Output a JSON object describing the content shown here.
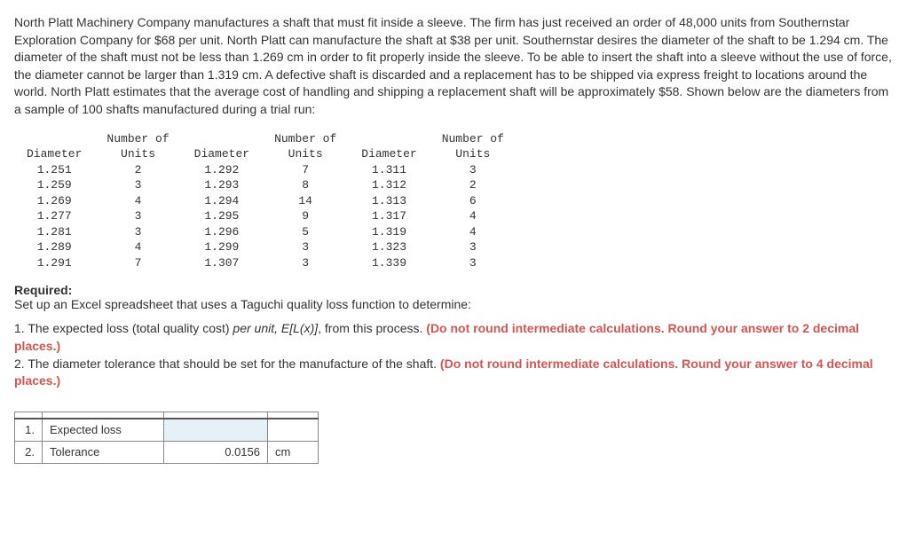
{
  "problem": "North Platt Machinery Company manufactures a shaft that must fit inside a sleeve. The firm has just received an order of 48,000 units from Southernstar Exploration Company for $68 per unit. North Platt can manufacture the shaft at $38 per unit. Southernstar desires the diameter of the shaft to be 1.294 cm. The diameter of the shaft must not be less than 1.269 cm in order to fit properly inside the sleeve. To be able to insert the shaft into a sleeve without the use of force, the diameter cannot be larger than 1.319 cm. A defective shaft is discarded and a replacement has to be shipped via express freight to locations around the world. North Platt estimates that the average cost of handling and shipping a replacement shaft will be approximately $58. Shown below are the diameters from a sample of 100 shafts manufactured during a trial run:",
  "table": {
    "header_top": "Number of",
    "header_diam": "Diameter",
    "header_units": "Units",
    "rows": [
      {
        "d1": "1.251",
        "u1": "2",
        "d2": "1.292",
        "u2": "7",
        "d3": "1.311",
        "u3": "3"
      },
      {
        "d1": "1.259",
        "u1": "3",
        "d2": "1.293",
        "u2": "8",
        "d3": "1.312",
        "u3": "2"
      },
      {
        "d1": "1.269",
        "u1": "4",
        "d2": "1.294",
        "u2": "14",
        "d3": "1.313",
        "u3": "6"
      },
      {
        "d1": "1.277",
        "u1": "3",
        "d2": "1.295",
        "u2": "9",
        "d3": "1.317",
        "u3": "4"
      },
      {
        "d1": "1.281",
        "u1": "3",
        "d2": "1.296",
        "u2": "5",
        "d3": "1.319",
        "u3": "4"
      },
      {
        "d1": "1.289",
        "u1": "4",
        "d2": "1.299",
        "u2": "3",
        "d3": "1.323",
        "u3": "3"
      },
      {
        "d1": "1.291",
        "u1": "7",
        "d2": "1.307",
        "u2": "3",
        "d3": "1.339",
        "u3": "3"
      }
    ]
  },
  "required_label": "Required:",
  "required_text": "Set up an Excel spreadsheet that uses a Taguchi quality loss function to determine:",
  "q1_pre": "1. The expected loss (total quality cost) ",
  "q1_italic": "per unit, E[L(x)]",
  "q1_post": ", from this process. ",
  "q1_red": "(Do not round intermediate calculations. Round your answer to 2 decimal places.)",
  "q2_pre": "2. The diameter tolerance that should be set for the manufacture of the shaft. ",
  "q2_red": "(Do not round intermediate calculations. Round your answer to 4 decimal places.)",
  "answers": {
    "row1_num": "1.",
    "row1_label": "Expected loss",
    "row1_val": "",
    "row1_unit": "",
    "row2_num": "2.",
    "row2_label": "Tolerance",
    "row2_val": "0.0156",
    "row2_unit": "cm"
  }
}
